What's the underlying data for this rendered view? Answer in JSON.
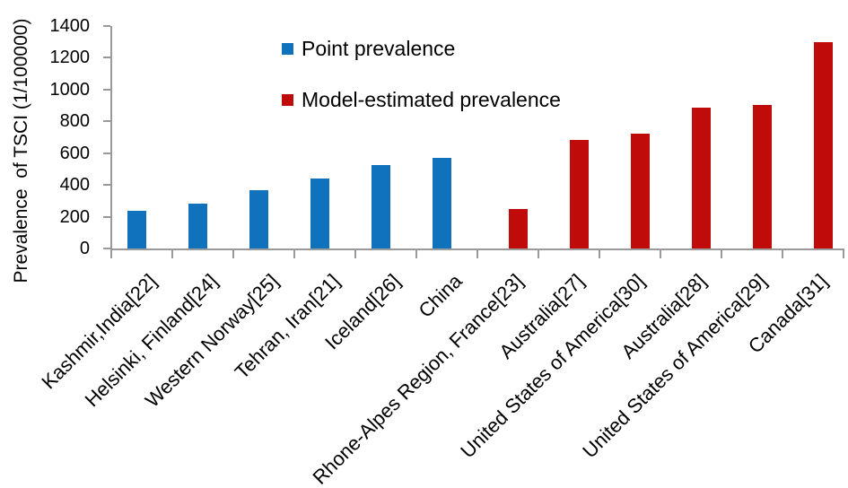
{
  "chart_data": {
    "type": "bar",
    "title": "",
    "ylabel": "Prevalence  of TSCI (1/100000)",
    "xlabel": "",
    "ylim": [
      0,
      1400
    ],
    "ytick_step": 200,
    "yticks": [
      0,
      200,
      400,
      600,
      800,
      1000,
      1200,
      1400
    ],
    "grid": false,
    "legend_position": "top-center",
    "x_label_rotation_deg": -45,
    "axis_color": "#9a9a9a",
    "categories": [
      "Kashmir,India[22]",
      "Helsinki, Finland[24]",
      "Western Norway[25]",
      "Tehran, Iran[21]",
      "Iceland[26]",
      "China",
      "Rhone-Alpes Region, France[23]",
      "Australia[27]",
      "United States of America[30]",
      "Australia[28]",
      "United States of America[29]",
      "Canada[31]"
    ],
    "series": [
      {
        "name": "Point prevalence",
        "color": "#1072BC",
        "values": [
          236,
          280,
          365,
          440,
          526,
          570,
          null,
          null,
          null,
          null,
          null,
          null
        ]
      },
      {
        "name": "Model-estimated prevalence",
        "color": "#C00B0B",
        "values": [
          null,
          null,
          null,
          null,
          null,
          null,
          250,
          681,
          721,
          884,
          906,
          1298
        ]
      }
    ]
  }
}
